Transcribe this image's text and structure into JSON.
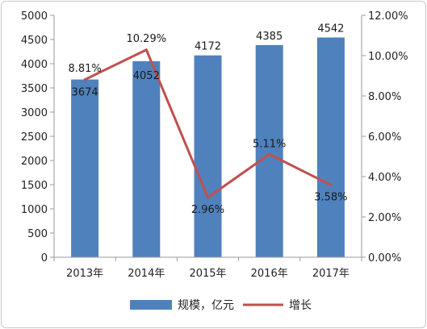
{
  "chart_data": {
    "type": "bar",
    "categories": [
      "2013年",
      "2014年",
      "2015年",
      "2016年",
      "2017年"
    ],
    "series": [
      {
        "name": "规模，亿元",
        "type": "bar",
        "axis": "left",
        "values": [
          3674,
          4052,
          4172,
          4385,
          4542
        ],
        "labels": [
          "3674",
          "4052",
          "4172",
          "4385",
          "4542"
        ],
        "color": "#4f81bd"
      },
      {
        "name": "增长",
        "type": "line",
        "axis": "right",
        "values": [
          8.81,
          10.29,
          2.96,
          5.11,
          3.58
        ],
        "labels": [
          "8.81%",
          "10.29%",
          "2.96%",
          "5.11%",
          "3.58%"
        ],
        "color": "#c0504d"
      }
    ],
    "left_axis": {
      "min": 0,
      "max": 5000,
      "ticks": [
        "0",
        "500",
        "1000",
        "1500",
        "2000",
        "2500",
        "3000",
        "3500",
        "4000",
        "4500",
        "5000"
      ]
    },
    "right_axis": {
      "min": 0,
      "max": 12,
      "ticks": [
        "0.00%",
        "2.00%",
        "4.00%",
        "6.00%",
        "8.00%",
        "10.00%",
        "12.00%"
      ]
    },
    "grid": false,
    "legend_position": "bottom"
  }
}
